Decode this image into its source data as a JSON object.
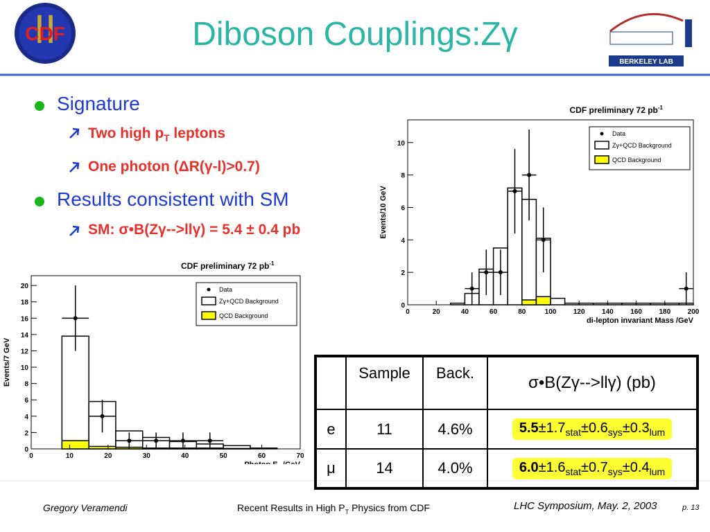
{
  "header": {
    "title": "Diboson Couplings:Zγ"
  },
  "logos": {
    "cdf_roman": "II",
    "cdf_text": "CDF",
    "berkeley": "BERKELEY LAB"
  },
  "bullets": [
    {
      "text": "Signature",
      "subs": [
        [
          "Two high p",
          "T",
          " leptons"
        ],
        [
          "One photon (ΔR(γ-l)>0.7)"
        ]
      ]
    },
    {
      "text": "Results consistent with SM",
      "subs": [
        [
          "SM: σ•B(Zγ-->llγ) = 5.4 ± 0.4 pb"
        ]
      ]
    }
  ],
  "chart_data": [
    {
      "type": "histogram",
      "title": [
        "CDF preliminary 72 pb",
        "-1"
      ],
      "xlabel": [
        "di-lepton invariant Mass /GeV"
      ],
      "ylabel": "Events/10 GeV",
      "xlim": [
        0,
        200
      ],
      "ylim": [
        0,
        11.4
      ],
      "xticks": [
        0,
        20,
        40,
        60,
        80,
        100,
        120,
        140,
        160,
        180,
        200
      ],
      "yticks": [
        0,
        2,
        4,
        6,
        8,
        10
      ],
      "legend": "upper right",
      "bins": [
        0,
        10,
        20,
        30,
        40,
        50,
        60,
        70,
        80,
        90,
        100,
        110,
        120,
        130,
        140,
        150,
        160,
        170,
        180,
        190,
        200
      ],
      "series": [
        {
          "name": "Zγ+QCD Background",
          "color": "#ffffff",
          "values": [
            0,
            0,
            0,
            0.1,
            0.7,
            2.2,
            3.5,
            7.2,
            6.5,
            4.1,
            0.4,
            0.1,
            0.1,
            0.1,
            0.1,
            0.1,
            0.1,
            0.1,
            0.1,
            0.1
          ]
        },
        {
          "name": "QCD Background",
          "color": "#ffff00",
          "values": [
            0,
            0,
            0,
            0,
            0,
            0,
            0,
            0,
            0.3,
            0.5,
            0,
            0,
            0,
            0,
            0,
            0,
            0,
            0,
            0,
            0
          ]
        }
      ],
      "points": {
        "name": "Data",
        "color": "#000000",
        "x": [
          45,
          55,
          65,
          75,
          85,
          95,
          195
        ],
        "values": [
          1,
          2,
          2,
          7,
          8,
          4,
          1
        ],
        "errors": [
          1,
          1.4,
          1.4,
          2.6,
          2.8,
          2,
          1
        ]
      }
    },
    {
      "type": "histogram",
      "title": [
        "CDF preliminary 72 pb",
        "-1"
      ],
      "xlabel": [
        "Photon E",
        "T",
        " /GeV"
      ],
      "ylabel": "Events/7 GeV",
      "xlim": [
        0,
        70
      ],
      "ylim": [
        0,
        21.2
      ],
      "xticks": [
        0,
        10,
        20,
        30,
        40,
        50,
        60,
        70
      ],
      "yticks": [
        0,
        2,
        4,
        6,
        8,
        10,
        12,
        14,
        16,
        18,
        20
      ],
      "legend": "upper right",
      "bins": [
        8,
        15,
        22,
        29,
        36,
        43,
        50,
        57,
        64
      ],
      "series": [
        {
          "name": "Zγ+QCD Background",
          "color": "#ffffff",
          "values": [
            13.8,
            5.8,
            2.2,
            1.4,
            0.9,
            0.6,
            0.4,
            0.1
          ]
        },
        {
          "name": "QCD Background",
          "color": "#ffff00",
          "values": [
            1.0,
            0.3,
            0.2,
            0.1,
            0.1,
            0.1,
            0.05,
            0
          ]
        }
      ],
      "points": {
        "name": "Data",
        "color": "#000000",
        "x": [
          11.5,
          18.5,
          25.5,
          32.5,
          39.5,
          46.5
        ],
        "values": [
          16,
          4,
          1,
          1,
          1,
          1
        ],
        "errors": [
          4,
          2,
          1,
          1,
          1,
          1
        ]
      }
    }
  ],
  "table": {
    "header": [
      "Sample",
      "Back.",
      "σ•B(Zγ-->llγ) (pb)"
    ],
    "rows": [
      {
        "label": "e",
        "sample": "11",
        "back": "4.6%",
        "xsec": [
          "5.5",
          "±1.7",
          "stat",
          "±0.6",
          "sys",
          "±0.3",
          "lum"
        ]
      },
      {
        "label": "μ",
        "sample": "14",
        "back": "4.0%",
        "xsec": [
          "6.0",
          "±1.6",
          "stat",
          "±0.7",
          "sys",
          "±0.4",
          "lum"
        ]
      }
    ]
  },
  "footer": {
    "author": "Gregory Veramendi",
    "talk": [
      "Recent Results in High P",
      "T",
      " Physics from CDF"
    ],
    "event": "LHC Symposium, May. 2, 2003",
    "page": "p. 13"
  }
}
